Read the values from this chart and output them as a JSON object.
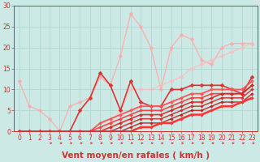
{
  "title": "",
  "xlabel": "Vent moyen/en rafales ( km/h )",
  "bg_color": "#cce9e5",
  "grid_color": "#b0d8d4",
  "xlim": [
    -0.5,
    23.5
  ],
  "ylim": [
    0,
    30
  ],
  "yticks": [
    0,
    5,
    10,
    15,
    20,
    25,
    30
  ],
  "xticks": [
    0,
    1,
    2,
    3,
    4,
    5,
    6,
    7,
    8,
    9,
    10,
    11,
    12,
    13,
    14,
    15,
    16,
    17,
    18,
    19,
    20,
    21,
    22,
    23
  ],
  "series": [
    {
      "x": [
        0,
        1,
        2,
        3,
        4,
        5,
        6,
        7,
        8,
        9,
        10,
        11,
        12,
        13,
        14,
        15,
        16,
        17,
        18,
        19,
        20,
        21,
        22,
        23
      ],
      "y": [
        12,
        6,
        5,
        3,
        0,
        6,
        7,
        8,
        13,
        11,
        18,
        28,
        25,
        20,
        10,
        20,
        23,
        22,
        17,
        16,
        20,
        21,
        21,
        21
      ],
      "color": "#ffaaaa",
      "alpha": 0.85,
      "lw": 1.0,
      "marker": "D",
      "ms": 2.5,
      "mew": 0.3
    },
    {
      "x": [
        0,
        1,
        2,
        3,
        4,
        5,
        6,
        7,
        8,
        9,
        10,
        11,
        12,
        13,
        14,
        15,
        16,
        17,
        18,
        19,
        20,
        21,
        22,
        23
      ],
      "y": [
        0,
        0,
        0,
        0,
        0,
        0,
        0,
        0,
        0,
        2,
        5,
        10,
        10,
        10,
        11,
        12,
        13,
        15,
        16,
        17,
        18,
        19,
        20,
        21
      ],
      "color": "#ffbbbb",
      "alpha": 0.75,
      "lw": 1.0,
      "marker": "D",
      "ms": 2.5,
      "mew": 0.3
    },
    {
      "x": [
        0,
        1,
        2,
        3,
        4,
        5,
        6,
        7,
        8,
        9,
        10,
        11,
        12,
        13,
        14,
        15,
        16,
        17,
        18,
        19,
        20,
        21,
        22,
        23
      ],
      "y": [
        0,
        0,
        0,
        0,
        0,
        0,
        5,
        8,
        14,
        11,
        5,
        12,
        7,
        6,
        6,
        10,
        10,
        11,
        11,
        11,
        11,
        10,
        9,
        13
      ],
      "color": "#dd3333",
      "alpha": 1.0,
      "lw": 1.2,
      "marker": "D",
      "ms": 2.5,
      "mew": 0.3
    },
    {
      "x": [
        0,
        1,
        2,
        3,
        4,
        5,
        6,
        7,
        8,
        9,
        10,
        11,
        12,
        13,
        14,
        15,
        16,
        17,
        18,
        19,
        20,
        21,
        22,
        23
      ],
      "y": [
        0,
        0,
        0,
        0,
        0,
        0,
        0,
        0,
        2,
        3,
        4,
        5,
        6,
        6,
        6,
        7,
        8,
        9,
        9,
        10,
        10,
        10,
        10,
        12
      ],
      "color": "#ff5555",
      "alpha": 1.0,
      "lw": 1.3,
      "marker": "D",
      "ms": 2.0,
      "mew": 0.3
    },
    {
      "x": [
        0,
        1,
        2,
        3,
        4,
        5,
        6,
        7,
        8,
        9,
        10,
        11,
        12,
        13,
        14,
        15,
        16,
        17,
        18,
        19,
        20,
        21,
        22,
        23
      ],
      "y": [
        0,
        0,
        0,
        0,
        0,
        0,
        0,
        0,
        1,
        2,
        3,
        4,
        5,
        5,
        5,
        6,
        7,
        8,
        8,
        9,
        9,
        9,
        9,
        11
      ],
      "color": "#ee4444",
      "alpha": 0.95,
      "lw": 1.2,
      "marker": "D",
      "ms": 2.0,
      "mew": 0.3
    },
    {
      "x": [
        0,
        1,
        2,
        3,
        4,
        5,
        6,
        7,
        8,
        9,
        10,
        11,
        12,
        13,
        14,
        15,
        16,
        17,
        18,
        19,
        20,
        21,
        22,
        23
      ],
      "y": [
        0,
        0,
        0,
        0,
        0,
        0,
        0,
        0,
        0,
        1,
        2,
        3,
        4,
        4,
        4,
        5,
        6,
        7,
        7,
        8,
        9,
        9,
        9,
        11
      ],
      "color": "#dd2222",
      "alpha": 0.9,
      "lw": 1.2,
      "marker": "D",
      "ms": 2.0,
      "mew": 0.3
    },
    {
      "x": [
        0,
        1,
        2,
        3,
        4,
        5,
        6,
        7,
        8,
        9,
        10,
        11,
        12,
        13,
        14,
        15,
        16,
        17,
        18,
        19,
        20,
        21,
        22,
        23
      ],
      "y": [
        0,
        0,
        0,
        0,
        0,
        0,
        0,
        0,
        0,
        0,
        1,
        2,
        3,
        3,
        3,
        4,
        5,
        6,
        6,
        7,
        8,
        8,
        8,
        10
      ],
      "color": "#cc2222",
      "alpha": 0.85,
      "lw": 1.1,
      "marker": "D",
      "ms": 1.8,
      "mew": 0.3
    },
    {
      "x": [
        0,
        1,
        2,
        3,
        4,
        5,
        6,
        7,
        8,
        9,
        10,
        11,
        12,
        13,
        14,
        15,
        16,
        17,
        18,
        19,
        20,
        21,
        22,
        23
      ],
      "y": [
        0,
        0,
        0,
        0,
        0,
        0,
        0,
        0,
        0,
        0,
        0,
        1,
        2,
        2,
        2,
        3,
        4,
        5,
        5,
        6,
        7,
        7,
        7,
        9
      ],
      "color": "#bb1111",
      "alpha": 0.8,
      "lw": 1.1,
      "marker": "D",
      "ms": 1.8,
      "mew": 0.3
    },
    {
      "x": [
        0,
        1,
        2,
        3,
        4,
        5,
        6,
        7,
        8,
        9,
        10,
        11,
        12,
        13,
        14,
        15,
        16,
        17,
        18,
        19,
        20,
        21,
        22,
        23
      ],
      "y": [
        0,
        0,
        0,
        0,
        0,
        0,
        0,
        0,
        0,
        0,
        0,
        0,
        1,
        1,
        2,
        2,
        3,
        4,
        4,
        5,
        6,
        6,
        7,
        8
      ],
      "color": "#ff3333",
      "alpha": 1.0,
      "lw": 1.8,
      "marker": "D",
      "ms": 1.8,
      "mew": 0.3
    }
  ],
  "xlabel_fontsize": 7.5,
  "tick_fontsize": 5.5,
  "spine_color": "#cc3333",
  "tick_color": "#cc3333",
  "label_color": "#cc3333"
}
